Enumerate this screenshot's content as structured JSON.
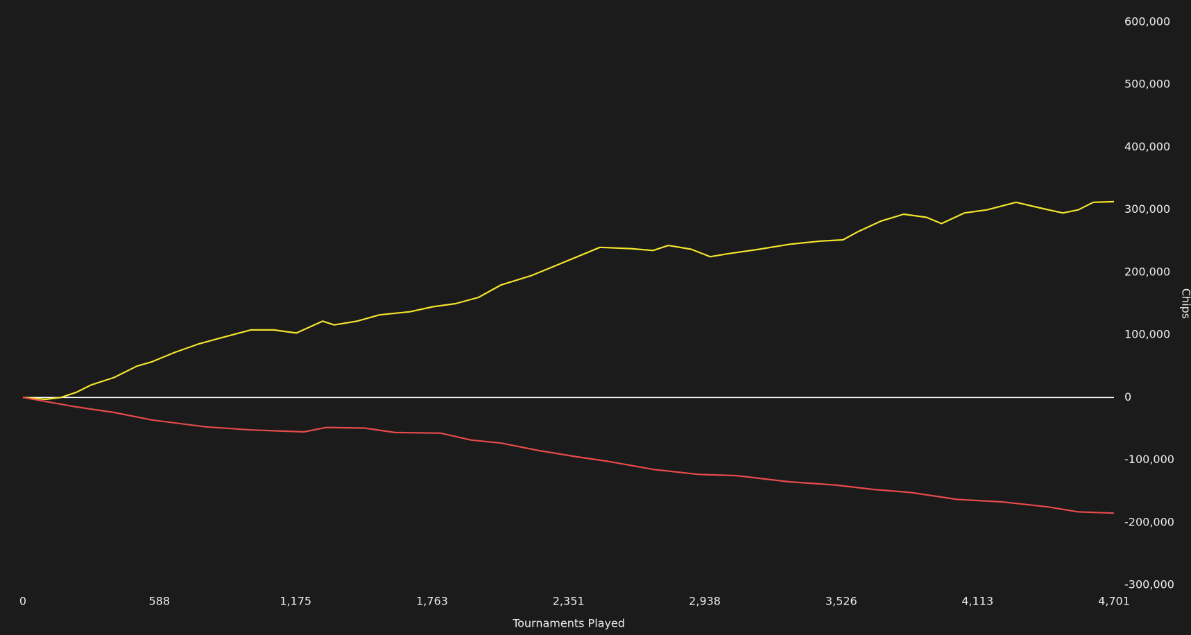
{
  "chart_data": {
    "type": "line",
    "x_label": "Tournaments Played",
    "y_label": "Chips",
    "xlim": [
      0,
      4701
    ],
    "xticks": [
      0,
      588,
      {
        "value": 1175,
        "label": "1,175"
      },
      {
        "value": 1763,
        "label": "1,763"
      },
      {
        "value": 2351,
        "label": "2,351"
      },
      {
        "value": 2938,
        "label": "2,938"
      },
      {
        "value": 3526,
        "label": "3,526"
      },
      {
        "value": 4113,
        "label": "4,113"
      },
      {
        "value": 4701,
        "label": "4,701"
      }
    ],
    "ylim": [
      -300000,
      600000
    ],
    "yticks": [
      {
        "value": 600000,
        "label": "600,000"
      },
      {
        "value": 500000,
        "label": "500,000"
      },
      {
        "value": 400000,
        "label": "400,000"
      },
      {
        "value": 300000,
        "label": "300,000"
      },
      {
        "value": 200000,
        "label": "200,000"
      },
      {
        "value": 100000,
        "label": "100,000"
      },
      0,
      {
        "value": -100000,
        "label": "-100,000"
      },
      {
        "value": -200000,
        "label": "-200,000"
      },
      {
        "value": -300000,
        "label": "-300,000"
      }
    ],
    "zero_line": true,
    "series": [
      {
        "color": "#f3e52c",
        "x": [
          0,
          98,
          164,
          229,
          294,
          393,
          491,
          556,
          654,
          753,
          851,
          982,
          1080,
          1178,
          1292,
          1341,
          1439,
          1537,
          1668,
          1766,
          1864,
          1963,
          2061,
          2192,
          2323,
          2421,
          2486,
          2617,
          2715,
          2781,
          2879,
          2961,
          3042,
          3173,
          3304,
          3435,
          3533,
          3598,
          3697,
          3795,
          3893,
          3958,
          4056,
          4154,
          4279,
          4383,
          4481,
          4547,
          4612,
          4701
        ],
        "values": [
          0,
          -3000,
          0,
          8000,
          20000,
          32000,
          50000,
          57000,
          72000,
          85000,
          95000,
          108000,
          108000,
          103000,
          122000,
          116000,
          122000,
          132000,
          137000,
          145000,
          150000,
          160000,
          180000,
          195000,
          215000,
          230000,
          240000,
          238000,
          235000,
          243000,
          237000,
          225000,
          230000,
          237000,
          245000,
          250000,
          252000,
          265000,
          282000,
          293000,
          288000,
          278000,
          295000,
          300000,
          312000,
          303000,
          295000,
          300000,
          312000,
          313000
        ]
      },
      {
        "color": "#e84a4a",
        "x": [
          0,
          229,
          393,
          556,
          786,
          982,
          1210,
          1308,
          1472,
          1603,
          1799,
          1930,
          2061,
          2224,
          2388,
          2519,
          2715,
          2911,
          3075,
          3304,
          3500,
          3664,
          3827,
          4024,
          4220,
          4416,
          4547,
          4701
        ],
        "values": [
          0,
          -15000,
          -24000,
          -36000,
          -47000,
          -52000,
          -55000,
          -48000,
          -49000,
          -56000,
          -57000,
          -68000,
          -73000,
          -85000,
          -95000,
          -102000,
          -115000,
          -123000,
          -125000,
          -135000,
          -140000,
          -147000,
          -152000,
          -163000,
          -167000,
          -175000,
          -183000,
          -185000
        ]
      }
    ]
  }
}
